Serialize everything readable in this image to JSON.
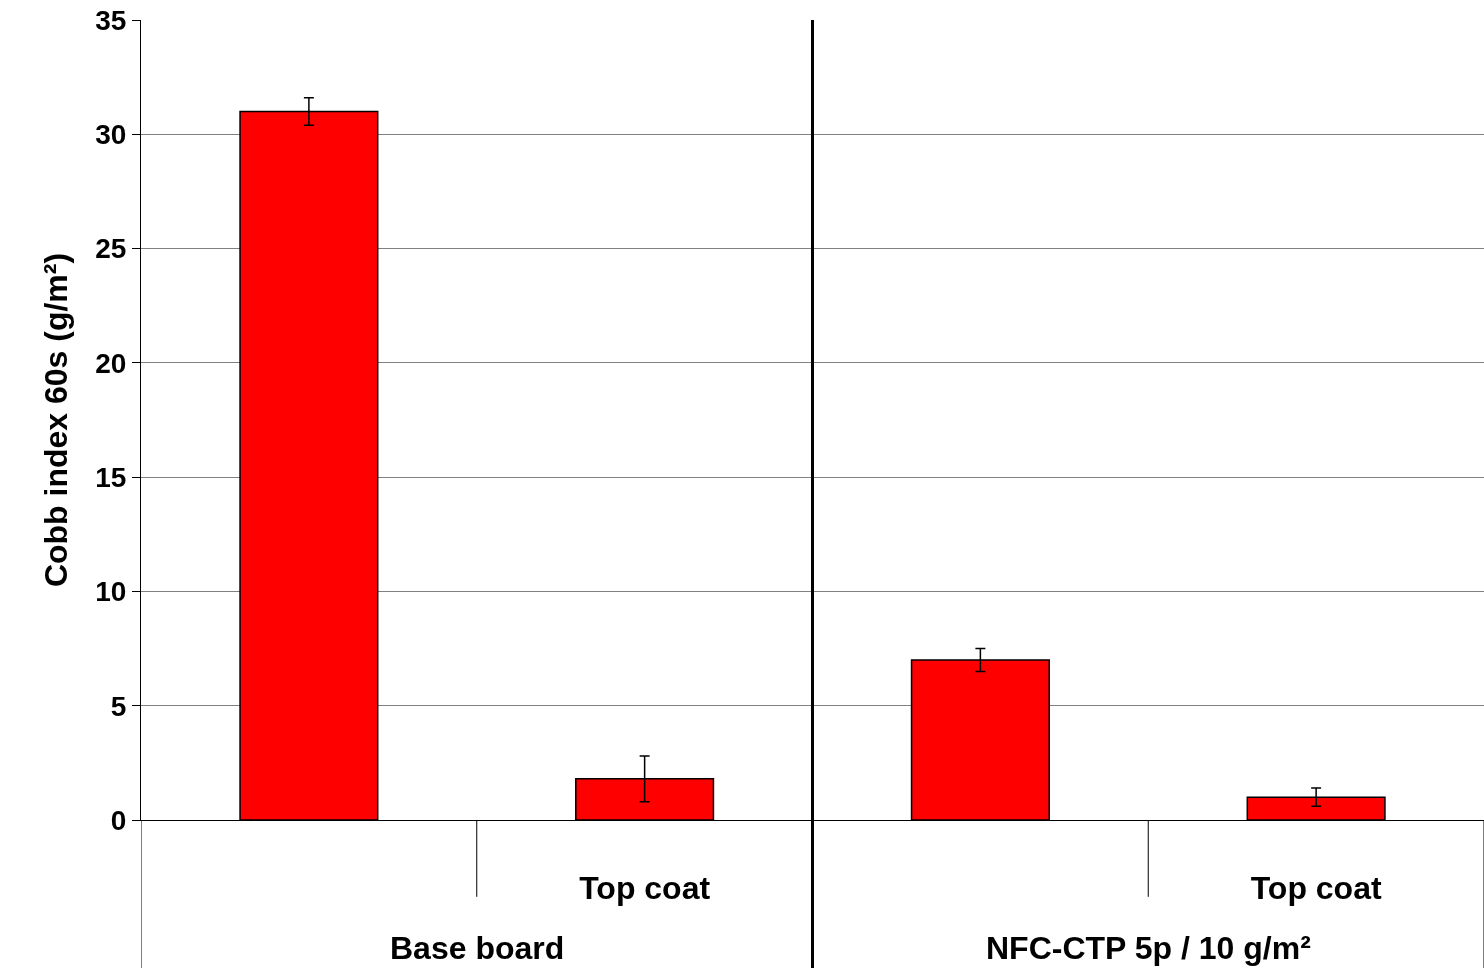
{
  "chart_data": {
    "type": "bar",
    "ylabel": "Cobb index 60s (g/m²)",
    "categories": [
      null,
      "Top coat",
      null,
      "Top coat"
    ],
    "values": [
      31,
      1.8,
      7.0,
      1.0
    ],
    "errors": [
      0.6,
      1.0,
      0.5,
      0.4
    ],
    "color": "#ff0000",
    "ylim": [
      0,
      35
    ],
    "yticks": [
      0,
      5,
      10,
      15,
      20,
      25,
      30,
      35
    ],
    "grid": "y",
    "annotations": [
      "Base board",
      "NFC-CTP 5p / 10 g/m²"
    ]
  }
}
